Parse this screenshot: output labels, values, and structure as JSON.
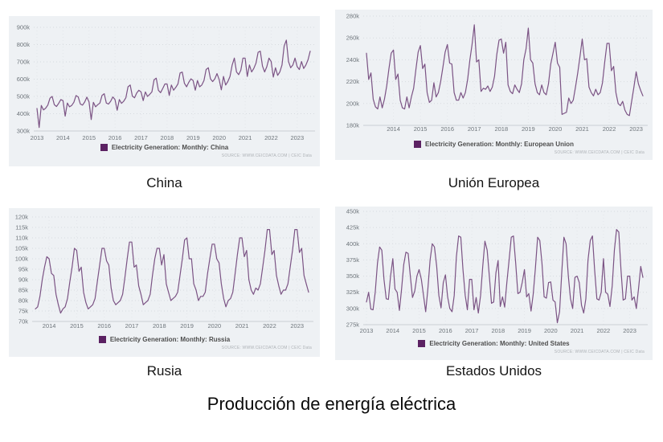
{
  "page_title": "Producción de energía eléctrica",
  "colors": {
    "line": "#7b5384",
    "legend_swatch": "#5b2162",
    "panel_background": "#eef1f4",
    "grid": "#d7dbdf",
    "tick_text": "#6e757b",
    "legend_text": "#4d4d4d",
    "source_text": "#aeb2b6"
  },
  "chart_data": [
    {
      "type": "line",
      "title": "China",
      "legend": "Electricity Generation: Monthly: China",
      "source": "SOURCE: WWW.CEICDATA.COM | CEIC Data",
      "unit": "k",
      "x_start": 2013.0,
      "x_labels": [
        "2013",
        "2014",
        "2015",
        "2016",
        "2017",
        "2018",
        "2019",
        "2020",
        "2021",
        "2022",
        "2023"
      ],
      "y_ticks": [
        300,
        400,
        500,
        600,
        700,
        800,
        900
      ],
      "ylim": [
        300,
        900
      ],
      "grid": true,
      "legend_position": "bottom-center",
      "values": [
        430,
        320,
        448,
        422,
        432,
        450,
        490,
        500,
        452,
        442,
        460,
        482,
        476,
        386,
        462,
        440,
        448,
        466,
        505,
        497,
        456,
        450,
        468,
        496,
        468,
        366,
        466,
        440,
        452,
        462,
        506,
        516,
        462,
        456,
        472,
        497,
        482,
        420,
        482,
        460,
        472,
        492,
        556,
        566,
        502,
        492,
        520,
        536,
        526,
        476,
        526,
        500,
        512,
        526,
        596,
        606,
        536,
        522,
        546,
        572,
        572,
        506,
        566,
        536,
        552,
        572,
        636,
        641,
        576,
        556,
        582,
        602,
        592,
        536,
        592,
        556,
        566,
        592,
        656,
        666,
        602,
        586,
        602,
        632,
        598,
        538,
        616,
        566,
        586,
        616,
        682,
        722,
        642,
        626,
        652,
        722,
        722,
        616,
        682,
        642,
        662,
        692,
        756,
        762,
        676,
        642,
        672,
        722,
        702,
        612,
        666,
        622,
        642,
        682,
        792,
        826,
        702,
        666,
        682,
        722,
        672,
        656,
        702,
        662,
        682,
        712,
        762
      ]
    },
    {
      "type": "line",
      "title": "Unión Europea",
      "legend": "Electricity Generation: Monthly: European Union",
      "source": "SOURCE: WWW.CEICDATA.COM | CEIC Data",
      "unit": "k",
      "x_start": 2013.0,
      "x_labels": [
        "2014",
        "2015",
        "2016",
        "2017",
        "2018",
        "2019",
        "2020",
        "2021",
        "2022",
        "2023"
      ],
      "y_ticks": [
        180,
        200,
        220,
        240,
        260,
        280
      ],
      "ylim": [
        180,
        280
      ],
      "grid": true,
      "legend_position": "bottom-center",
      "values": [
        246,
        222,
        228,
        204,
        197,
        195,
        206,
        196,
        204,
        216,
        232,
        246,
        249,
        222,
        227,
        203,
        196,
        195,
        206,
        196,
        206,
        214,
        231,
        247,
        253,
        232,
        236,
        210,
        201,
        203,
        219,
        206,
        210,
        220,
        233,
        247,
        254,
        237,
        236,
        210,
        203,
        203,
        210,
        205,
        210,
        222,
        240,
        254,
        272,
        238,
        240,
        211,
        214,
        213,
        216,
        211,
        215,
        225,
        245,
        258,
        259,
        246,
        256,
        217,
        211,
        209,
        217,
        213,
        210,
        218,
        240,
        250,
        269,
        240,
        237,
        218,
        210,
        208,
        217,
        210,
        208,
        218,
        236,
        246,
        256,
        237,
        233,
        190,
        191,
        192,
        205,
        200,
        203,
        215,
        228,
        243,
        259,
        240,
        241,
        215,
        210,
        207,
        213,
        208,
        210,
        219,
        238,
        255,
        255,
        230,
        234,
        210,
        200,
        198,
        202,
        194,
        190,
        189,
        202,
        215,
        229,
        218,
        212,
        207
      ]
    },
    {
      "type": "line",
      "title": "Rusia",
      "legend": "Electricity Generation: Monthly: Russia",
      "source": "SOURCE: WWW.CEICDATA.COM | CEIC Data",
      "unit": "k",
      "x_start": 2013.5,
      "x_labels": [
        "2014",
        "2015",
        "2016",
        "2017",
        "2018",
        "2019",
        "2020",
        "2021",
        "2022",
        "2023"
      ],
      "y_ticks": [
        70,
        75,
        80,
        85,
        90,
        95,
        100,
        105,
        110,
        115,
        120
      ],
      "ylim": [
        70,
        120
      ],
      "grid": true,
      "legend_position": "bottom-center",
      "values": [
        76,
        77,
        82,
        90,
        96,
        101,
        100,
        93,
        92,
        83,
        78,
        74,
        76,
        77,
        81,
        89,
        96,
        105,
        104,
        94,
        96,
        84,
        79,
        76,
        77,
        78,
        81,
        89,
        97,
        105,
        105,
        99,
        97,
        86,
        80,
        78,
        79,
        80,
        83,
        91,
        100,
        108,
        108,
        96,
        97,
        87,
        83,
        78,
        79,
        80,
        83,
        92,
        100,
        105,
        105,
        97,
        102,
        88,
        84,
        80,
        81,
        82,
        84,
        92,
        100,
        109,
        110,
        100,
        100,
        88,
        85,
        80,
        82,
        82,
        84,
        93,
        100,
        107,
        107,
        100,
        98,
        88,
        81,
        77,
        80,
        81,
        84,
        93,
        102,
        110,
        110,
        101,
        104,
        90,
        85,
        83,
        86,
        85,
        88,
        96,
        104,
        114,
        114,
        102,
        104,
        92,
        87,
        83,
        85,
        85,
        88,
        96,
        104,
        114,
        114,
        103,
        105,
        92,
        88,
        84
      ]
    },
    {
      "type": "line",
      "title": "Estados Unidos",
      "legend": "Electricity Generation: Monthly: United States",
      "source": "SOURCE: WWW.CEICDATA.COM | CEIC Data",
      "unit": "k",
      "x_start": 2013.0,
      "x_labels": [
        "2013",
        "2014",
        "2015",
        "2016",
        "2017",
        "2018",
        "2019",
        "2020",
        "2021",
        "2022",
        "2023"
      ],
      "y_ticks": [
        275,
        300,
        325,
        350,
        375,
        400,
        425,
        450
      ],
      "ylim": [
        275,
        450
      ],
      "grid": true,
      "legend_position": "bottom-center",
      "values": [
        310,
        325,
        299,
        298,
        325,
        370,
        395,
        390,
        345,
        315,
        314,
        350,
        377,
        330,
        325,
        297,
        330,
        368,
        387,
        385,
        350,
        317,
        327,
        350,
        360,
        345,
        320,
        295,
        330,
        375,
        400,
        395,
        365,
        320,
        301,
        340,
        352,
        318,
        300,
        295,
        320,
        380,
        412,
        410,
        360,
        320,
        298,
        345,
        345,
        298,
        317,
        293,
        320,
        365,
        404,
        390,
        350,
        308,
        310,
        355,
        374,
        303,
        318,
        302,
        340,
        375,
        410,
        412,
        370,
        323,
        325,
        340,
        360,
        318,
        323,
        296,
        322,
        362,
        410,
        405,
        370,
        318,
        316,
        340,
        341,
        313,
        310,
        278,
        295,
        355,
        410,
        400,
        350,
        315,
        300,
        348,
        350,
        340,
        305,
        293,
        315,
        375,
        405,
        412,
        360,
        315,
        313,
        325,
        377,
        325,
        322,
        303,
        335,
        390,
        422,
        418,
        360,
        313,
        315,
        350,
        350,
        313,
        318,
        300,
        330,
        365,
        348
      ]
    }
  ]
}
